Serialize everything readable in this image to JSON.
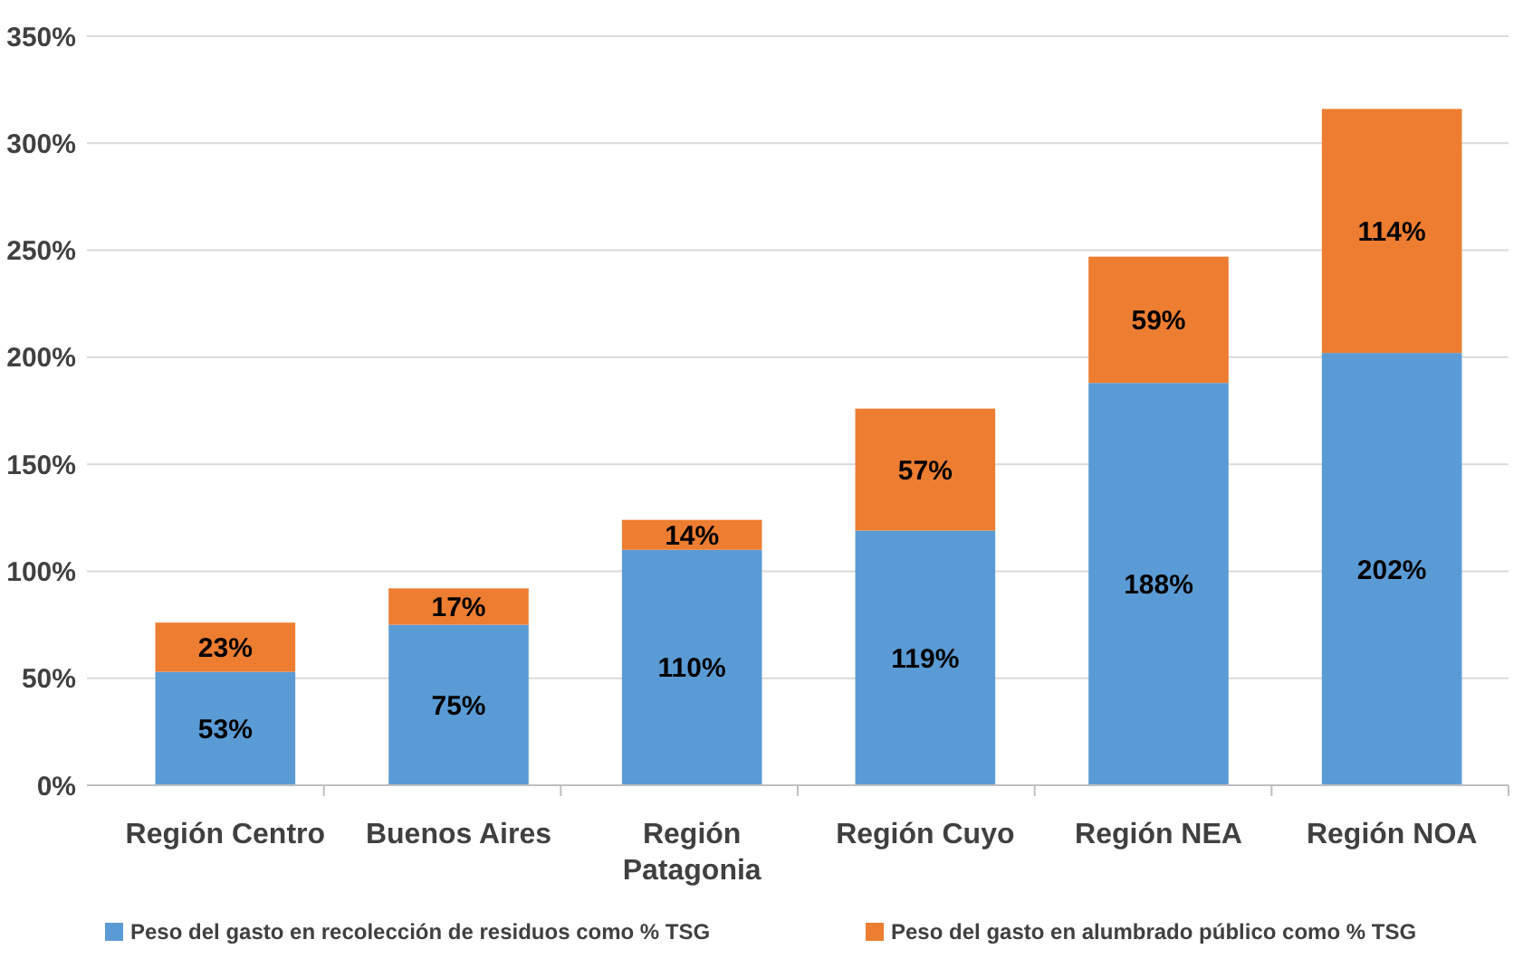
{
  "chart_data": {
    "type": "bar",
    "stacked": true,
    "categories": [
      "Región Centro",
      "Buenos Aires",
      "Región Patagonia",
      "Región Cuyo",
      "Región NEA",
      "Región NOA"
    ],
    "series": [
      {
        "name": "Peso del gasto en recolección de residuos como % TSG",
        "color": "#5b9bd5",
        "values": [
          53,
          75,
          110,
          119,
          188,
          202
        ],
        "value_labels": [
          "53%",
          "75%",
          "110%",
          "119%",
          "188%",
          "202%"
        ]
      },
      {
        "name": "Peso del gasto en alumbrado público como % TSG",
        "color": "#ed7d31",
        "values": [
          23,
          17,
          14,
          57,
          59,
          114
        ],
        "value_labels": [
          "23%",
          "17%",
          "14%",
          "57%",
          "59%",
          "114%"
        ]
      }
    ],
    "ylim": [
      0,
      350
    ],
    "yticks": [
      {
        "value": 0,
        "label": "0%"
      },
      {
        "value": 50,
        "label": "50%"
      },
      {
        "value": 100,
        "label": "100%"
      },
      {
        "value": 150,
        "label": "150%"
      },
      {
        "value": 200,
        "label": "200%"
      },
      {
        "value": 250,
        "label": "250%"
      },
      {
        "value": 300,
        "label": "300%"
      },
      {
        "value": 350,
        "label": "350%"
      }
    ],
    "grid": "y",
    "legend": "bottom"
  }
}
